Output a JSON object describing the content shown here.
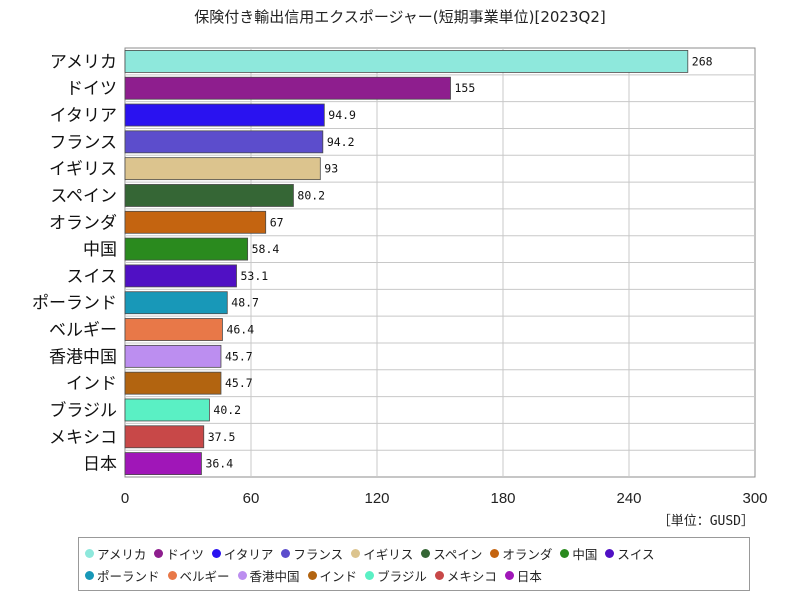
{
  "chart_data": {
    "type": "bar",
    "orientation": "horizontal",
    "title": "保険付き輸出信用エクスポージャー(短期事業単位)[2023Q2]",
    "unit_label": "［単位：GUSD］",
    "xlim": [
      0,
      300
    ],
    "x_ticks": [
      "0",
      "60",
      "120",
      "180",
      "240",
      "300"
    ],
    "grid": true,
    "legend_position": "bottom",
    "categories": [
      "アメリカ",
      "ドイツ",
      "イタリア",
      "フランス",
      "イギリス",
      "スペイン",
      "オランダ",
      "中国",
      "スイス",
      "ポーランド",
      "ベルギー",
      "香港中国",
      "インド",
      "ブラジル",
      "メキシコ",
      "日本"
    ],
    "values": [
      268,
      155,
      94.9,
      94.2,
      93,
      80.2,
      67,
      58.4,
      53.1,
      48.7,
      46.4,
      45.7,
      45.7,
      40.2,
      37.5,
      36.4
    ],
    "value_labels": [
      "268",
      "155",
      "94.9",
      "94.2",
      "93",
      "80.2",
      "67",
      "58.4",
      "53.1",
      "48.7",
      "46.4",
      "45.7",
      "45.7",
      "40.2",
      "37.5",
      "36.4"
    ],
    "colors": [
      "#8ee8dc",
      "#8e1e8e",
      "#2a12f0",
      "#5c4dcc",
      "#dcc48e",
      "#356635",
      "#c46410",
      "#2a8a1e",
      "#5010c4",
      "#1898b8",
      "#e87848",
      "#bc8ef0",
      "#b26410",
      "#5af0c4",
      "#c84848",
      "#a016b8"
    ]
  }
}
